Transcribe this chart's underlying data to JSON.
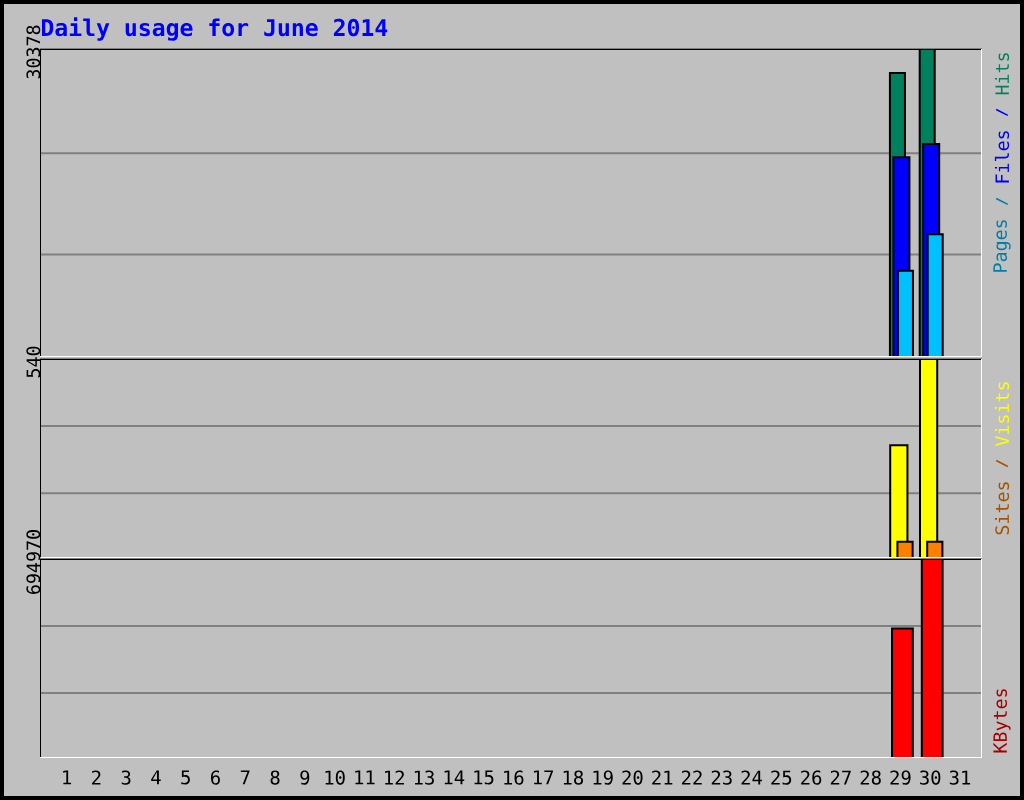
{
  "chart_data": [
    {
      "type": "bar",
      "title": "Daily usage for June 2014",
      "categories": [
        "1",
        "2",
        "3",
        "4",
        "5",
        "6",
        "7",
        "8",
        "9",
        "10",
        "11",
        "12",
        "13",
        "14",
        "15",
        "16",
        "17",
        "18",
        "19",
        "20",
        "21",
        "22",
        "23",
        "24",
        "25",
        "26",
        "27",
        "28",
        "29",
        "30",
        "31"
      ],
      "series": [
        {
          "name": "Hits",
          "color": "#00805c",
          "values": [
            null,
            null,
            null,
            null,
            null,
            null,
            null,
            null,
            null,
            null,
            null,
            null,
            null,
            null,
            null,
            null,
            null,
            null,
            null,
            null,
            null,
            null,
            null,
            null,
            null,
            null,
            null,
            null,
            28000,
            30378,
            null
          ]
        },
        {
          "name": "Files",
          "color": "#0000ff",
          "values": [
            null,
            null,
            null,
            null,
            null,
            null,
            null,
            null,
            null,
            null,
            null,
            null,
            null,
            null,
            null,
            null,
            null,
            null,
            null,
            null,
            null,
            null,
            null,
            null,
            null,
            null,
            null,
            null,
            19700,
            21000,
            null
          ]
        },
        {
          "name": "Pages",
          "color": "#00c0ff",
          "values": [
            null,
            null,
            null,
            null,
            null,
            null,
            null,
            null,
            null,
            null,
            null,
            null,
            null,
            null,
            null,
            null,
            null,
            null,
            null,
            null,
            null,
            null,
            null,
            null,
            null,
            null,
            null,
            null,
            8500,
            12100,
            null
          ]
        }
      ],
      "ylim": [
        0,
        30378
      ],
      "yticks": [
        {
          "value": 10100,
          "label": null
        },
        {
          "value": 20100,
          "label": null
        },
        30378
      ],
      "grid": "y",
      "legend": "right",
      "tick_labels": "y"
    },
    {
      "type": "bar",
      "categories": [
        "1",
        "2",
        "3",
        "4",
        "5",
        "6",
        "7",
        "8",
        "9",
        "10",
        "11",
        "12",
        "13",
        "14",
        "15",
        "16",
        "17",
        "18",
        "19",
        "20",
        "21",
        "22",
        "23",
        "24",
        "25",
        "26",
        "27",
        "28",
        "29",
        "30",
        "31"
      ],
      "series": [
        {
          "name": "Visits",
          "color": "#ffff00",
          "values": [
            null,
            null,
            null,
            null,
            null,
            null,
            null,
            null,
            null,
            null,
            null,
            null,
            null,
            null,
            null,
            null,
            null,
            null,
            null,
            null,
            null,
            null,
            null,
            null,
            null,
            null,
            null,
            null,
            306,
            540,
            null
          ]
        },
        {
          "name": "Sites",
          "color": "#ff8000",
          "values": [
            null,
            null,
            null,
            null,
            null,
            null,
            null,
            null,
            null,
            null,
            null,
            null,
            null,
            null,
            null,
            null,
            null,
            null,
            null,
            null,
            null,
            null,
            null,
            null,
            null,
            null,
            null,
            null,
            44,
            44,
            null
          ]
        }
      ],
      "ylim": [
        0,
        540
      ],
      "yticks": [
        {
          "value": 176,
          "label": null
        },
        {
          "value": 358,
          "label": null
        },
        540
      ],
      "grid": "y",
      "legend": "right",
      "tick_labels": "y"
    },
    {
      "type": "bar",
      "categories": [
        "1",
        "2",
        "3",
        "4",
        "5",
        "6",
        "7",
        "8",
        "9",
        "10",
        "11",
        "12",
        "13",
        "14",
        "15",
        "16",
        "17",
        "18",
        "19",
        "20",
        "21",
        "22",
        "23",
        "24",
        "25",
        "26",
        "27",
        "28",
        "29",
        "30",
        "31"
      ],
      "series": [
        {
          "name": "KBytes",
          "color": "#ff0000",
          "values": [
            null,
            null,
            null,
            null,
            null,
            null,
            null,
            null,
            null,
            null,
            null,
            null,
            null,
            null,
            null,
            null,
            null,
            null,
            null,
            null,
            null,
            null,
            null,
            null,
            null,
            null,
            null,
            null,
            452000,
            694970,
            null
          ]
        }
      ],
      "ylim": [
        0,
        694970
      ],
      "yticks": [
        {
          "value": 227000,
          "label": null
        },
        {
          "value": 461000,
          "label": null
        },
        694970
      ],
      "grid": "y",
      "legend": "right"
    }
  ]
}
